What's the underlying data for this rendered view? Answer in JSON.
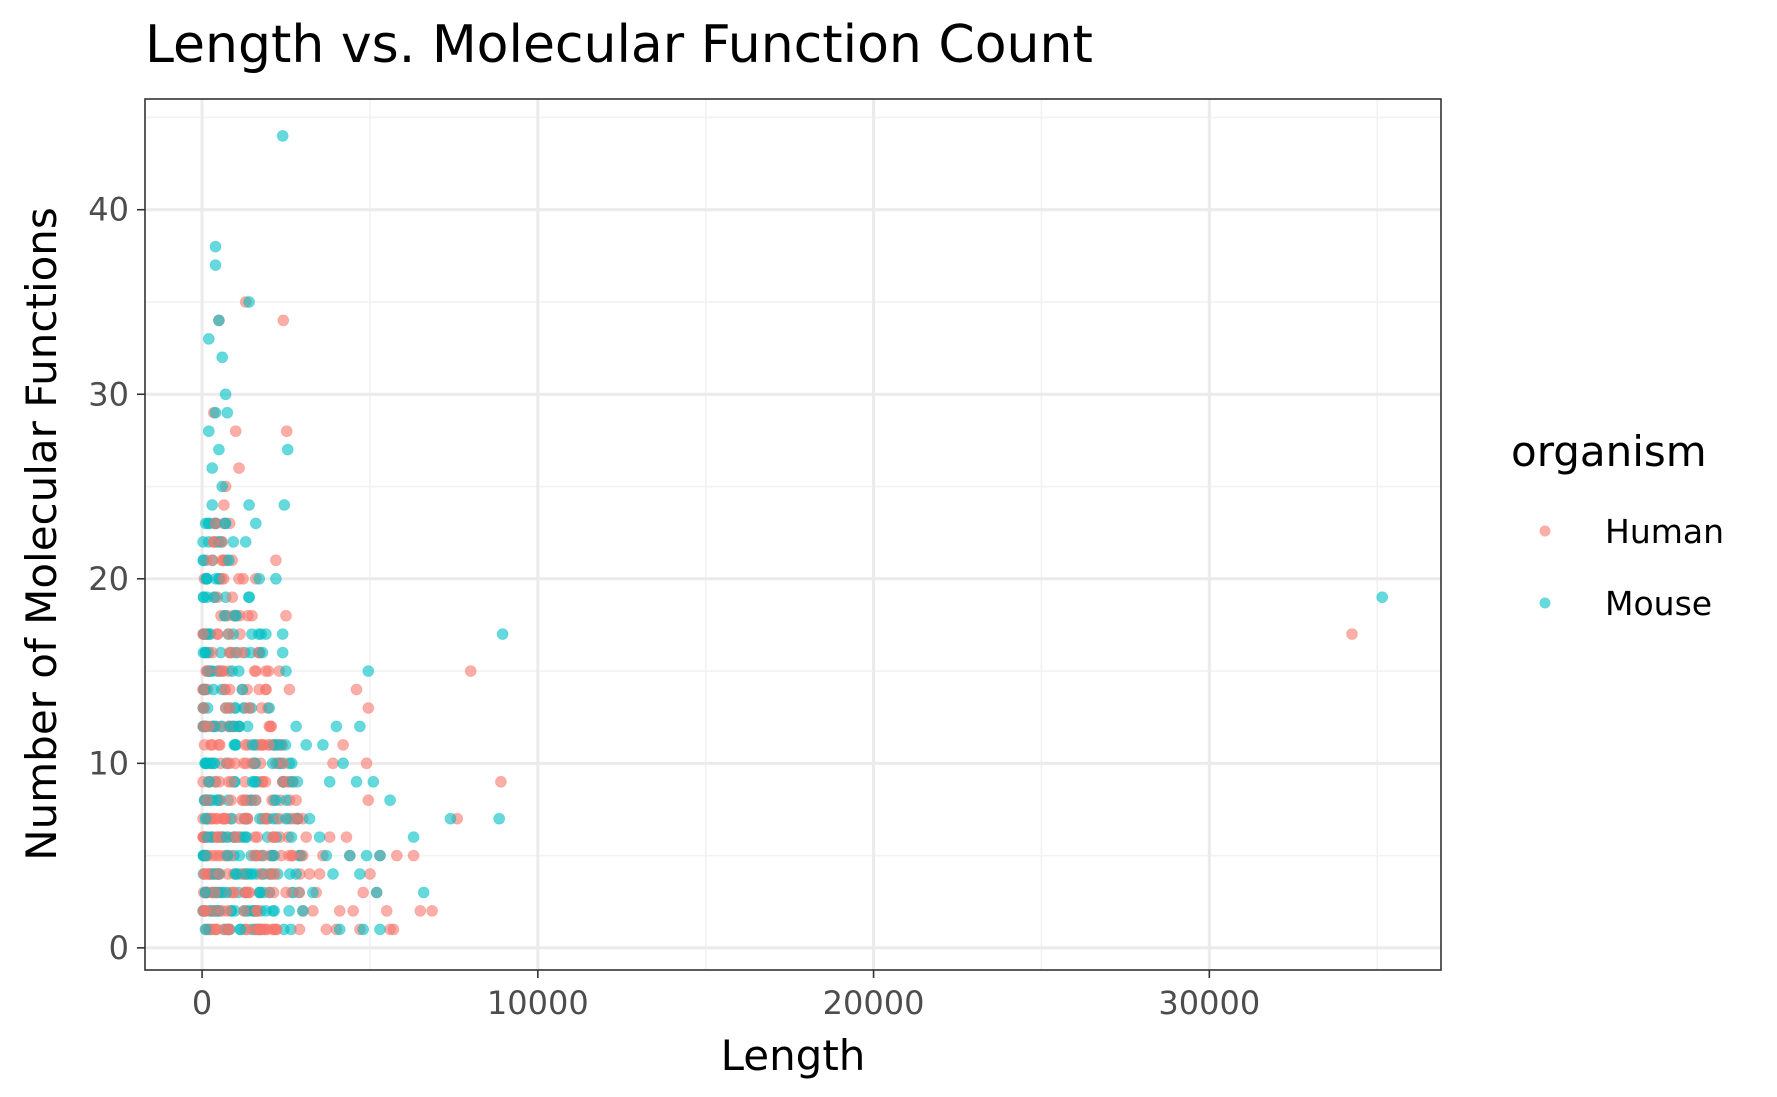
{
  "chart_data": {
    "type": "scatter",
    "title": "Length vs. Molecular Function Count",
    "xlabel": "Length",
    "ylabel": "Number of Molecular Functions",
    "xlim": [
      -1700,
      36900
    ],
    "ylim": [
      -1.2,
      46
    ],
    "x_ticks": [
      0,
      10000,
      20000,
      30000
    ],
    "x_tick_labels": [
      "0",
      "10000",
      "20000",
      "30000"
    ],
    "y_ticks": [
      0,
      10,
      20,
      30,
      40
    ],
    "y_tick_labels": [
      "0",
      "10",
      "20",
      "30",
      "40"
    ],
    "grid": true,
    "legend": {
      "title": "organism",
      "position": "right",
      "entries": [
        "Human",
        "Mouse"
      ]
    },
    "series": [
      {
        "name": "Human",
        "color": "#F8766D",
        "points": [
          [
            1300,
            35
          ],
          [
            2420,
            34
          ],
          [
            500,
            34
          ],
          [
            2520,
            28
          ],
          [
            350,
            29
          ],
          [
            1000,
            28
          ],
          [
            1100,
            26
          ],
          [
            700,
            25
          ],
          [
            2200,
            21
          ],
          [
            1100,
            20
          ],
          [
            1600,
            20
          ],
          [
            2500,
            18
          ],
          [
            8000,
            15
          ],
          [
            4600,
            14
          ],
          [
            4950,
            13
          ],
          [
            8900,
            9
          ],
          [
            7600,
            7
          ],
          [
            6300,
            5
          ],
          [
            6850,
            2
          ],
          [
            5700,
            1
          ],
          [
            5500,
            2
          ],
          [
            5200,
            3
          ],
          [
            4500,
            2
          ],
          [
            4300,
            6
          ],
          [
            3900,
            10
          ],
          [
            4200,
            11
          ],
          [
            4900,
            10
          ],
          [
            4950,
            8
          ],
          [
            3600,
            5
          ],
          [
            3200,
            4
          ],
          [
            5800,
            5
          ],
          [
            5000,
            4
          ],
          [
            3800,
            6
          ],
          [
            34250,
            17
          ],
          [
            400,
            23
          ],
          [
            600,
            22
          ],
          [
            900,
            19
          ],
          [
            1900,
            14
          ],
          [
            2300,
            15
          ],
          [
            2600,
            14
          ],
          [
            2000,
            12
          ],
          [
            1700,
            11
          ],
          [
            2400,
            9
          ],
          [
            2800,
            8
          ],
          [
            3000,
            7
          ],
          [
            3400,
            3
          ],
          [
            3700,
            1
          ],
          [
            4100,
            2
          ],
          [
            4700,
            1
          ],
          [
            1200,
            16
          ],
          [
            1400,
            13
          ],
          [
            800,
            17
          ],
          [
            300,
            21
          ],
          [
            200,
            12
          ],
          [
            150,
            8
          ],
          [
            100,
            4
          ],
          [
            120,
            2
          ],
          [
            2100,
            6
          ],
          [
            2700,
            5
          ],
          [
            1500,
            10
          ],
          [
            1800,
            9
          ],
          [
            950,
            18
          ],
          [
            650,
            24
          ],
          [
            2900,
            3
          ],
          [
            3300,
            2
          ],
          [
            6500,
            2
          ],
          [
            5600,
            1
          ],
          [
            4000,
            1
          ],
          [
            1000,
            6
          ],
          [
            1300,
            7
          ],
          [
            500,
            15
          ],
          [
            700,
            13
          ],
          [
            2200,
            10
          ],
          [
            2000,
            11
          ],
          [
            1600,
            8
          ],
          [
            3500,
            4
          ],
          [
            3100,
            6
          ],
          [
            4400,
            5
          ],
          [
            4800,
            3
          ],
          [
            5300,
            5
          ]
        ]
      },
      {
        "name": "Mouse",
        "color": "#00BFC4",
        "points": [
          [
            2400,
            44
          ],
          [
            400,
            38
          ],
          [
            400,
            37
          ],
          [
            1400,
            35
          ],
          [
            500,
            34
          ],
          [
            200,
            33
          ],
          [
            600,
            32
          ],
          [
            700,
            30
          ],
          [
            750,
            29
          ],
          [
            400,
            29
          ],
          [
            200,
            28
          ],
          [
            2550,
            27
          ],
          [
            500,
            27
          ],
          [
            2450,
            24
          ],
          [
            300,
            24
          ],
          [
            1400,
            24
          ],
          [
            1600,
            23
          ],
          [
            8950,
            17
          ],
          [
            4950,
            15
          ],
          [
            35150,
            19
          ],
          [
            4700,
            12
          ],
          [
            4000,
            12
          ],
          [
            3600,
            11
          ],
          [
            3800,
            9
          ],
          [
            4200,
            10
          ],
          [
            4600,
            9
          ],
          [
            5100,
            9
          ],
          [
            5600,
            8
          ],
          [
            8850,
            7
          ],
          [
            7400,
            7
          ],
          [
            6300,
            6
          ],
          [
            6600,
            3
          ],
          [
            5200,
            3
          ],
          [
            4700,
            4
          ],
          [
            3900,
            4
          ],
          [
            3100,
            11
          ],
          [
            2800,
            12
          ],
          [
            2500,
            15
          ],
          [
            2400,
            16
          ],
          [
            2400,
            17
          ],
          [
            1700,
            20
          ],
          [
            2200,
            20
          ],
          [
            1300,
            22
          ],
          [
            1800,
            16
          ],
          [
            2000,
            13
          ],
          [
            1900,
            17
          ],
          [
            2700,
            9
          ],
          [
            3200,
            7
          ],
          [
            3500,
            6
          ],
          [
            3700,
            5
          ],
          [
            4400,
            5
          ],
          [
            4900,
            5
          ],
          [
            5300,
            5
          ],
          [
            4100,
            1
          ],
          [
            4800,
            1
          ],
          [
            5300,
            1
          ],
          [
            3000,
            2
          ],
          [
            3300,
            3
          ],
          [
            2800,
            4
          ],
          [
            2500,
            7
          ],
          [
            2200,
            8
          ],
          [
            1500,
            11
          ],
          [
            1200,
            14
          ],
          [
            1000,
            18
          ],
          [
            800,
            21
          ],
          [
            600,
            25
          ],
          [
            150,
            20
          ],
          [
            100,
            16
          ],
          [
            120,
            10
          ],
          [
            100,
            7
          ],
          [
            100,
            5
          ],
          [
            100,
            3
          ],
          [
            100,
            1
          ],
          [
            1100,
            12
          ],
          [
            900,
            15
          ],
          [
            700,
            23
          ],
          [
            300,
            26
          ],
          [
            2100,
            10
          ],
          [
            1600,
            9
          ],
          [
            1300,
            6
          ],
          [
            1000,
            4
          ],
          [
            1900,
            2
          ]
        ]
      }
    ],
    "dense_cloud": {
      "x_range": [
        0,
        3000
      ],
      "y_values": [
        1,
        2,
        3,
        4,
        5,
        6,
        7,
        8,
        9,
        10,
        11,
        12,
        13,
        14,
        15,
        16,
        17,
        18,
        19,
        20,
        21,
        22,
        23
      ]
    }
  }
}
